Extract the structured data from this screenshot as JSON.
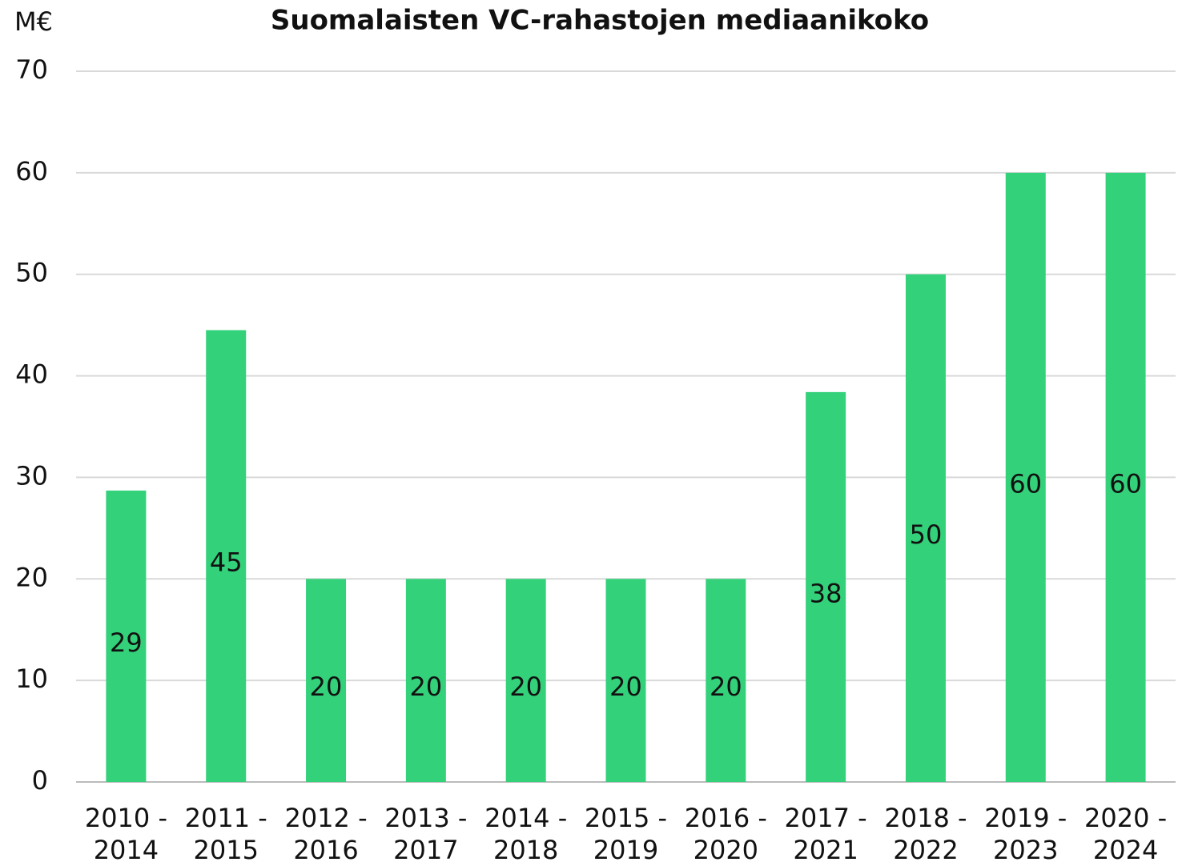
{
  "chart_data": {
    "type": "bar",
    "title": "Suomalaisten VC-rahastojen mediaanikoko",
    "y_label": "M€",
    "categories": [
      [
        "2010 -",
        "2014"
      ],
      [
        "2011 -",
        "2015"
      ],
      [
        "2012 -",
        "2016"
      ],
      [
        "2013 -",
        "2017"
      ],
      [
        "2014 -",
        "2018"
      ],
      [
        "2015 -",
        "2019"
      ],
      [
        "2016 -",
        "2020"
      ],
      [
        "2017 -",
        "2021"
      ],
      [
        "2018 -",
        "2022"
      ],
      [
        "2019 -",
        "2023"
      ],
      [
        "2020 -",
        "2024"
      ]
    ],
    "values": [
      28.7,
      44.5,
      20,
      20,
      20,
      20,
      20,
      38.4,
      50,
      60,
      60
    ],
    "value_labels": [
      "29",
      "45",
      "20",
      "20",
      "20",
      "20",
      "20",
      "38",
      "50",
      "60",
      "60"
    ],
    "color": "#33d17a",
    "ylim": [
      0,
      70
    ],
    "yticks": [
      0,
      10,
      20,
      30,
      40,
      50,
      60,
      70
    ],
    "grid": true
  }
}
